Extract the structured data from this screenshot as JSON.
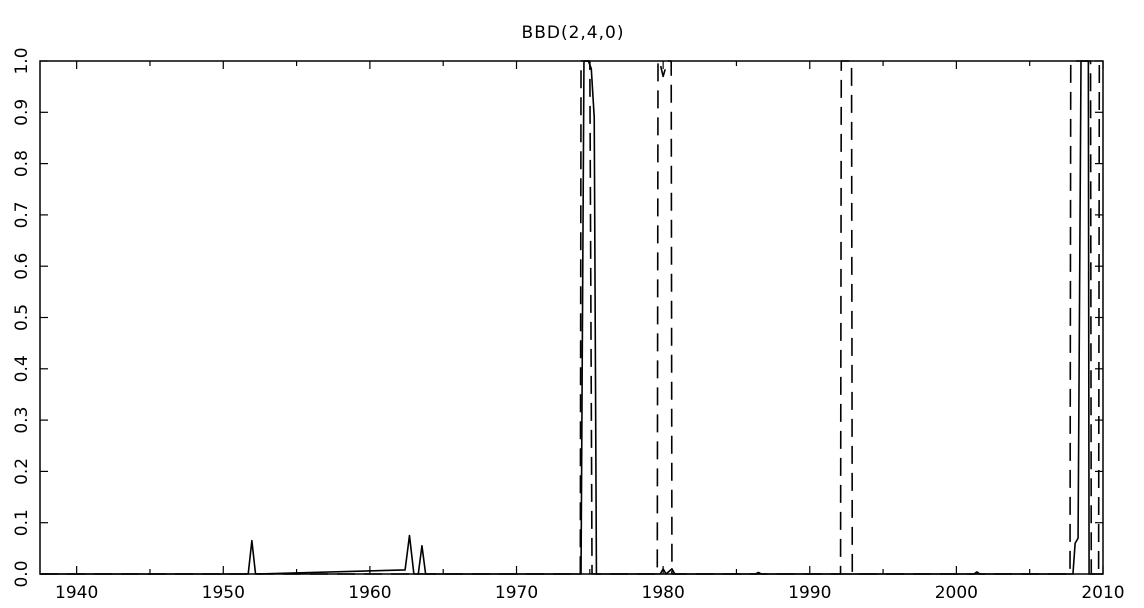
{
  "chart_data": {
    "type": "line",
    "title": "BBD(2,4,0)",
    "xlabel": "",
    "ylabel": "",
    "xlim": [
      1937.5,
      2010
    ],
    "ylim": [
      0.0,
      1.0
    ],
    "x_ticks": [
      1940,
      1950,
      1960,
      1970,
      1980,
      1990,
      2000,
      2010
    ],
    "x_tick_labels": [
      "1940",
      "1950",
      "1960",
      "1970",
      "1980",
      "1990",
      "2000",
      "2010"
    ],
    "y_ticks": [
      0.0,
      0.1,
      0.2,
      0.3,
      0.4,
      0.5,
      0.6,
      0.7,
      0.8,
      0.9,
      1.0
    ],
    "y_tick_labels": [
      "0.0",
      "0.1",
      "0.2",
      "0.3",
      "0.4",
      "0.5",
      "0.6",
      "0.7",
      "0.8",
      "0.9",
      "1.0"
    ],
    "grid": false,
    "legend": "none",
    "series": [
      {
        "style": "solid",
        "color": "#000000",
        "x": [
          1937.5,
          1951.7,
          1951.95,
          1952.2,
          1962.4,
          1962.7,
          1963.0,
          1963.3,
          1963.55,
          1963.8,
          1974.4,
          1974.6,
          1974.9,
          1975.1,
          1975.3,
          1975.45,
          1979.8,
          1980.0,
          1980.2,
          1980.6,
          1980.8,
          1986.3,
          1986.5,
          1986.7,
          2001.2,
          2001.4,
          2001.6,
          2007.95,
          2008.1,
          2008.3,
          2008.5,
          2008.75,
          2009.0,
          2009.05,
          2010
        ],
        "y": [
          0.0,
          0.0,
          0.065,
          0.0,
          0.008,
          0.075,
          0.0,
          0.0,
          0.055,
          0.0,
          0.0,
          1.0,
          1.0,
          0.985,
          0.89,
          0.0,
          0.0,
          0.01,
          0.0,
          0.01,
          0.0,
          0.0,
          0.003,
          0.0,
          0.0,
          0.004,
          0.0,
          0.0,
          0.06,
          0.07,
          1.0,
          1.0,
          1.0,
          0.0,
          0.0
        ]
      },
      {
        "style": "dashed",
        "color": "#000000",
        "x": [
          1937.5,
          1974.35,
          1974.4,
          1974.55,
          1975.0,
          1975.15,
          1979.6,
          1979.65,
          1979.75,
          1980.0,
          1980.3,
          1980.55,
          1980.6,
          1992.1,
          1992.15,
          1992.3,
          1992.85,
          1992.9,
          2007.75,
          2007.8,
          2007.95,
          2009.15,
          2009.2,
          2009.7,
          2009.75
        ],
        "y": [
          0.0,
          0.0,
          1.0,
          1.0,
          1.0,
          0.0,
          0.0,
          1.0,
          1.0,
          0.97,
          1.0,
          1.0,
          0.0,
          0.0,
          1.0,
          1.0,
          1.0,
          0.0,
          0.0,
          1.0,
          1.0,
          1.0,
          0.0,
          0.0,
          1.0
        ]
      }
    ]
  }
}
